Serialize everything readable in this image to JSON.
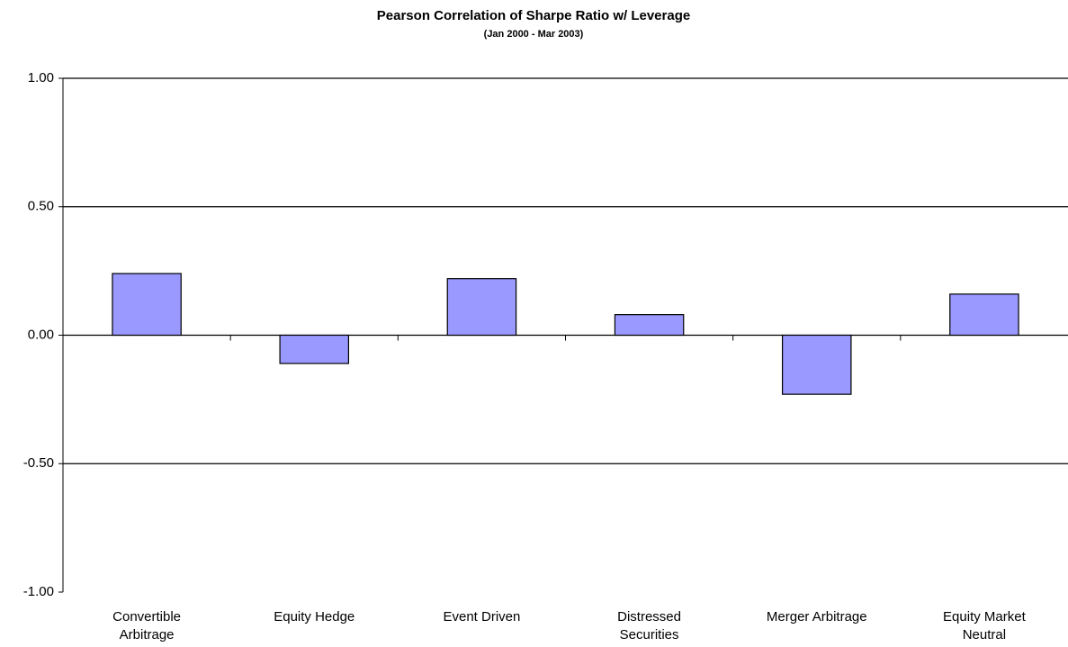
{
  "chart_data": {
    "type": "bar",
    "title": "Pearson Correlation of Sharpe Ratio w/ Leverage",
    "subtitle": "(Jan 2000 - Mar 2003)",
    "categories": [
      "Convertible\nArbitrage",
      "Equity Hedge",
      "Event Driven",
      "Distressed\nSecurities",
      "Merger Arbitrage",
      "Equity Market\nNeutral"
    ],
    "values": [
      0.24,
      -0.11,
      0.22,
      0.08,
      -0.23,
      0.16
    ],
    "color": "#9999ff",
    "ylim": [
      -1,
      1
    ],
    "yticks": [
      {
        "value": 1,
        "label": "1.00"
      },
      {
        "value": 0.5,
        "label": "0.50"
      },
      {
        "value": 0,
        "label": "0.00"
      },
      {
        "value": -0.5,
        "label": "-0.50"
      },
      {
        "value": -1,
        "label": "-1.00"
      }
    ],
    "grid": true
  }
}
